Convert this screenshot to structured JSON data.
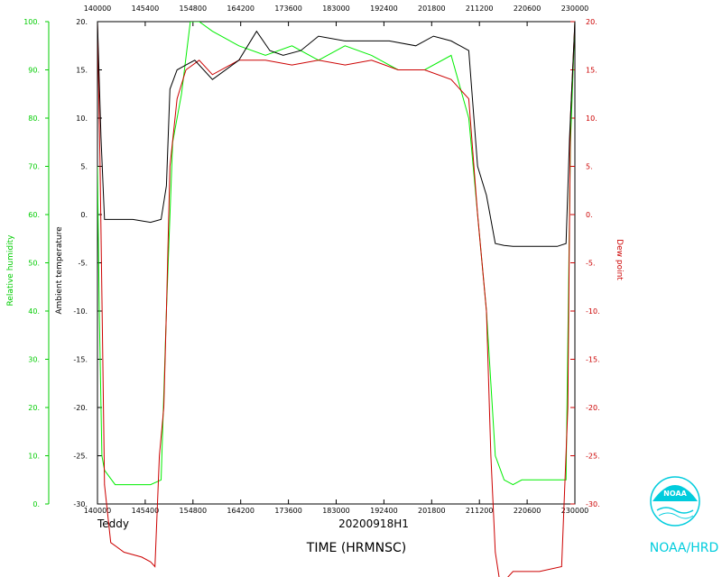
{
  "chart_data": {
    "type": "line",
    "storm_name": "Teddy",
    "flight_id": "20200918H1",
    "xlabel": "TIME (HRMNSC)",
    "x_ticks": [
      "140000",
      "145400",
      "154800",
      "164200",
      "173600",
      "183000",
      "192400",
      "201800",
      "211200",
      "220600",
      "230000"
    ],
    "xlim": [
      "14:00:00",
      "23:00:00"
    ],
    "left_axes": [
      {
        "name": "Relative humidity",
        "color": "#00ee00",
        "ylim": [
          0,
          100
        ],
        "ticks": [
          "0.",
          "10.",
          "20.",
          "30.",
          "40.",
          "50.",
          "60.",
          "70.",
          "80.",
          "90.",
          "100."
        ]
      },
      {
        "name": "Ambient temperature",
        "color": "#000000",
        "ylim": [
          -30,
          20
        ],
        "ticks": [
          "-30.",
          "-25.",
          "-20.",
          "-15.",
          "-10.",
          "-5.",
          "0.",
          "5.",
          "10.",
          "15.",
          "20."
        ]
      }
    ],
    "right_axis": {
      "name": "Dew point",
      "color": "#cc0000",
      "ylim": [
        -30,
        20
      ],
      "ticks": [
        "-30.",
        "-25.",
        "-20.",
        "-15.",
        "-10.",
        "-5.",
        "0.",
        "5.",
        "10.",
        "15.",
        "20."
      ]
    },
    "series": [
      {
        "name": "Relative humidity",
        "axis": "rh",
        "color": "#00ee00",
        "x": [
          "14:00",
          "14:02",
          "14:05",
          "14:08",
          "14:20",
          "14:40",
          "14:50",
          "15:00",
          "15:12",
          "15:18",
          "15:25",
          "15:35",
          "15:45",
          "15:55",
          "16:10",
          "16:40",
          "17:10",
          "17:40",
          "18:10",
          "18:40",
          "19:10",
          "19:40",
          "20:10",
          "20:40",
          "21:00",
          "21:10",
          "21:20",
          "21:30",
          "21:40",
          "21:50",
          "22:00",
          "22:30",
          "22:50",
          "22:55",
          "23:00"
        ],
        "y": [
          70,
          40,
          10,
          7,
          4,
          4,
          4,
          4,
          5,
          40,
          75,
          85,
          100,
          100,
          98,
          95,
          93,
          95,
          92,
          95,
          93,
          90,
          90,
          93,
          80,
          60,
          40,
          10,
          5,
          4,
          5,
          5,
          5,
          75,
          100
        ]
      },
      {
        "name": "Ambient temperature",
        "axis": "temp",
        "color": "#000000",
        "x": [
          "14:00",
          "14:04",
          "14:08",
          "14:20",
          "14:40",
          "15:00",
          "15:12",
          "15:18",
          "15:22",
          "15:30",
          "15:40",
          "15:50",
          "16:10",
          "16:40",
          "17:00",
          "17:15",
          "17:30",
          "17:50",
          "18:10",
          "18:40",
          "19:00",
          "19:30",
          "20:00",
          "20:20",
          "20:40",
          "21:00",
          "21:10",
          "21:20",
          "21:30",
          "21:40",
          "21:50",
          "22:00",
          "22:20",
          "22:40",
          "22:50",
          "22:54",
          "23:00"
        ],
        "y": [
          20,
          8,
          -0.5,
          -0.5,
          -0.5,
          -0.8,
          -0.5,
          3,
          13,
          15,
          15.5,
          16,
          14,
          16,
          19,
          17,
          16.5,
          17,
          18.5,
          18,
          18,
          18,
          17.5,
          18.5,
          18,
          17,
          5,
          2,
          -3,
          -3.2,
          -3.3,
          -3.3,
          -3.3,
          -3.3,
          -3,
          8,
          20
        ]
      },
      {
        "name": "Dew point",
        "axis": "temp",
        "color": "#cc0000",
        "x": [
          "14:00",
          "14:03",
          "14:06",
          "14:08",
          "14:15",
          "14:30",
          "14:50",
          "15:00",
          "15:05",
          "15:10",
          "15:15",
          "15:18",
          "15:22",
          "15:30",
          "15:40",
          "15:55",
          "16:10",
          "16:40",
          "17:10",
          "17:40",
          "18:10",
          "18:40",
          "19:10",
          "19:40",
          "20:10",
          "20:40",
          "21:00",
          "21:10",
          "21:15",
          "21:20",
          "21:25",
          "21:30",
          "21:35",
          "21:40",
          "21:50",
          "22:20",
          "22:45",
          "22:52",
          "22:55",
          "23:00"
        ],
        "y": [
          20,
          5,
          -15,
          -28,
          -34,
          -35,
          -35.5,
          -36,
          -36.5,
          -25,
          -20,
          -10,
          5,
          12,
          15,
          16,
          14.5,
          16,
          16,
          15.5,
          16,
          15.5,
          16,
          15,
          15,
          14,
          12,
          0,
          -5,
          -10,
          -25,
          -35,
          -38,
          -38,
          -37,
          -37,
          -36.5,
          -20,
          10,
          20
        ]
      }
    ]
  },
  "branding": {
    "logo_text": "NOAA",
    "caption": "NOAA/HRD"
  }
}
